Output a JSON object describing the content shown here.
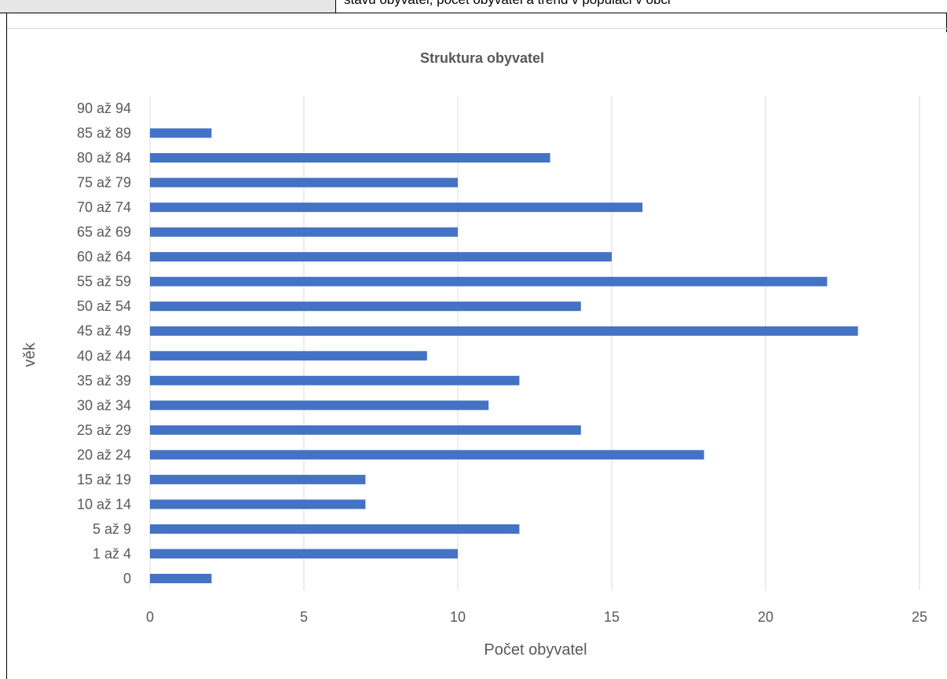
{
  "doc": {
    "table_snippet": "stavu obyvatel, počet obyvatel a trend v populaci v obci"
  },
  "colors": {
    "bar": "#4472c4",
    "grid": "#d9d9d9",
    "text": "#595959"
  },
  "chart_data": {
    "type": "bar",
    "orientation": "horizontal",
    "title": "Struktura obyvatel",
    "xlabel": "Počet obyvatel",
    "ylabel": "věk",
    "xlim": [
      0,
      25
    ],
    "xticks": [
      0,
      5,
      10,
      15,
      20,
      25
    ],
    "grid": true,
    "legend": "none",
    "categories": [
      "0",
      "1 až 4",
      "5 až 9",
      "10 až 14",
      "15 až 19",
      "20 až 24",
      "25 až 29",
      "30 až 34",
      "35 až 39",
      "40 až 44",
      "45 až 49",
      "50 až 54",
      "55 až 59",
      "60 až 64",
      "65 až 69",
      "70 až 74",
      "75 až 79",
      "80 až 84",
      "85 až 89",
      "90 až 94"
    ],
    "values": [
      2,
      10,
      12,
      7,
      7,
      18,
      14,
      11,
      12,
      9,
      23,
      14,
      22,
      15,
      10,
      16,
      10,
      13,
      2,
      0
    ]
  }
}
